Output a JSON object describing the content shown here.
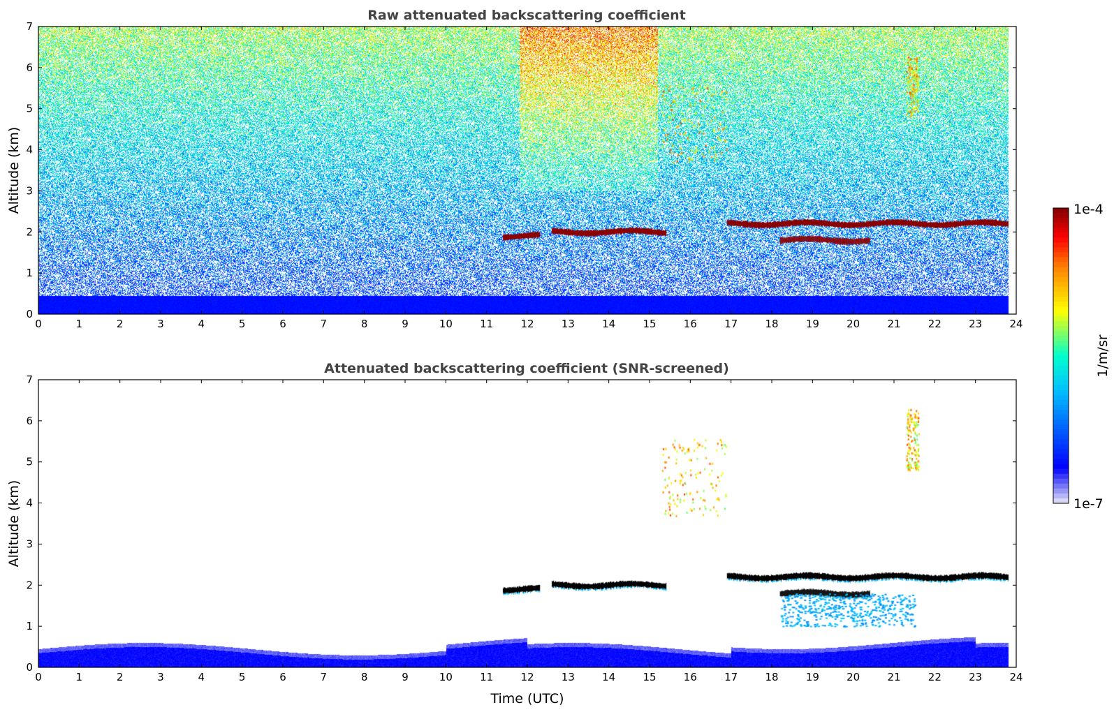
{
  "chart_data": [
    {
      "type": "heatmap",
      "title": "Raw attenuated backscattering coefficient",
      "xlabel": "",
      "ylabel": "Altitude (km)",
      "xlim": [
        0,
        24
      ],
      "ylim": [
        0,
        7
      ],
      "xticks": [
        "0",
        "1",
        "2",
        "3",
        "4",
        "5",
        "6",
        "7",
        "8",
        "9",
        "10",
        "11",
        "12",
        "13",
        "14",
        "15",
        "16",
        "17",
        "18",
        "19",
        "20",
        "21",
        "22",
        "23",
        "24"
      ],
      "yticks": [
        "0",
        "1",
        "2",
        "3",
        "4",
        "5",
        "6",
        "7"
      ],
      "data_end_time": 23.8,
      "features": [
        {
          "kind": "near-surface layer",
          "alt_km": [
            0,
            0.45
          ],
          "level": "high-blue"
        },
        {
          "kind": "cloud layer",
          "time": [
            11.4,
            12.3
          ],
          "alt_km": 1.9,
          "level": "max"
        },
        {
          "kind": "cloud layer",
          "time": [
            12.6,
            15.4
          ],
          "alt_km": 2.0,
          "level": "max"
        },
        {
          "kind": "cloud layer",
          "time": [
            16.9,
            23.8
          ],
          "alt_km": 2.2,
          "level": "max"
        },
        {
          "kind": "cloud layer",
          "time": [
            18.2,
            20.4
          ],
          "alt_km": 1.8,
          "level": "max"
        },
        {
          "kind": "cloud fragments",
          "time": [
            15.3,
            16.9
          ],
          "alt_km": [
            3.7,
            5.6
          ],
          "level": "mid"
        },
        {
          "kind": "cloud fragment",
          "time": [
            21.3,
            21.6
          ],
          "alt_km": [
            4.8,
            6.3
          ],
          "level": "mid"
        }
      ]
    },
    {
      "type": "heatmap",
      "title": "Attenuated backscattering coefficient (SNR-screened)",
      "xlabel": "Time (UTC)",
      "ylabel": "Altitude (km)",
      "xlim": [
        0,
        24
      ],
      "ylim": [
        0,
        7
      ],
      "xticks": [
        "0",
        "1",
        "2",
        "3",
        "4",
        "5",
        "6",
        "7",
        "8",
        "9",
        "10",
        "11",
        "12",
        "13",
        "14",
        "15",
        "16",
        "17",
        "18",
        "19",
        "20",
        "21",
        "22",
        "23",
        "24"
      ],
      "yticks": [
        "0",
        "1",
        "2",
        "3",
        "4",
        "5",
        "6",
        "7"
      ],
      "data_end_time": 23.8,
      "features": [
        {
          "kind": "near-surface layer",
          "alt_km": [
            0,
            0.6
          ],
          "level": "blue"
        },
        {
          "kind": "cloud layer",
          "time": [
            11.4,
            12.3
          ],
          "alt_km": 1.9,
          "level": "saturated"
        },
        {
          "kind": "cloud layer",
          "time": [
            12.6,
            15.4
          ],
          "alt_km": 2.0,
          "level": "saturated"
        },
        {
          "kind": "cloud layer",
          "time": [
            16.9,
            23.8
          ],
          "alt_km": 2.2,
          "level": "saturated"
        },
        {
          "kind": "cloud layer",
          "time": [
            18.2,
            20.4
          ],
          "alt_km": 1.8,
          "level": "saturated"
        },
        {
          "kind": "precipitation streaks",
          "time": [
            18.2,
            21.5
          ],
          "alt_km": [
            1.0,
            1.8
          ],
          "level": "light-blue"
        },
        {
          "kind": "cloud fragments",
          "time": [
            15.3,
            16.9
          ],
          "alt_km": [
            3.7,
            5.6
          ],
          "level": "mixed"
        },
        {
          "kind": "cloud fragment",
          "time": [
            21.3,
            21.6
          ],
          "alt_km": [
            4.8,
            6.3
          ],
          "level": "mixed"
        }
      ]
    }
  ],
  "colorbar": {
    "max_label": "1e-4",
    "min_label": "1e-7",
    "unit_label": "1/m/sr",
    "colormap": "jet",
    "colors": [
      "#e6e6f5",
      "#0000ff",
      "#00bfff",
      "#00ffcc",
      "#ffff00",
      "#ff8000",
      "#ff0000",
      "#800000"
    ]
  }
}
